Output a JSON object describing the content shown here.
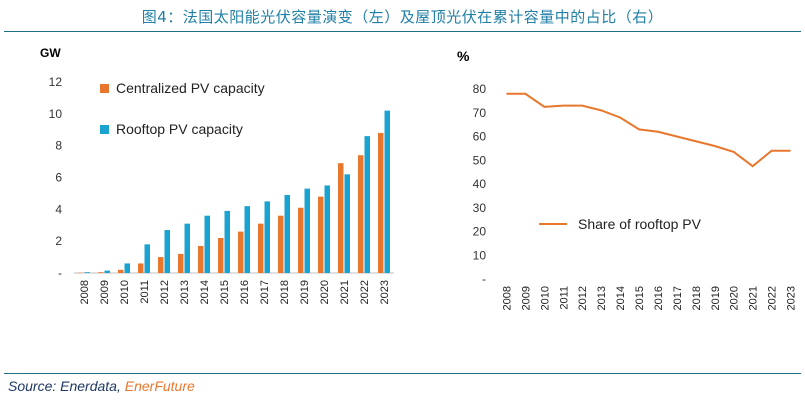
{
  "title": "图4：法国太阳能光伏容量演变（左）及屋顶光伏在累计容量中的占比（右）",
  "source": {
    "prefix": "Source: Enerdata, ",
    "brand": "EnerFuture"
  },
  "colors": {
    "centralized": "#e8772e",
    "rooftop": "#1aa3d0",
    "share": "#e8772e",
    "title": "#1f7fa6"
  },
  "chart_data": [
    {
      "type": "bar",
      "ylabel": "GW",
      "ylim": [
        0,
        12
      ],
      "yticks": [
        "-",
        "2",
        "4",
        "6",
        "8",
        "10",
        "12"
      ],
      "categories": [
        "2008",
        "2009",
        "2010",
        "2011",
        "2012",
        "2013",
        "2014",
        "2015",
        "2016",
        "2017",
        "2018",
        "2019",
        "2020",
        "2021",
        "2022",
        "2023"
      ],
      "series": [
        {
          "name": "Centralized PV capacity",
          "color": "#e8772e",
          "values": [
            0.02,
            0.05,
            0.2,
            0.6,
            1.0,
            1.2,
            1.7,
            2.2,
            2.6,
            3.1,
            3.6,
            4.1,
            4.8,
            6.9,
            7.4,
            8.8
          ]
        },
        {
          "name": "Rooftop PV capacity",
          "color": "#1aa3d0",
          "values": [
            0.05,
            0.15,
            0.6,
            1.8,
            2.7,
            3.1,
            3.6,
            3.9,
            4.2,
            4.5,
            4.9,
            5.3,
            5.5,
            6.2,
            8.6,
            10.2
          ]
        }
      ],
      "legend_position": "top-left"
    },
    {
      "type": "line",
      "ylabel": "%",
      "ylim": [
        0,
        80
      ],
      "yticks": [
        "-",
        "10",
        "20",
        "30",
        "40",
        "50",
        "60",
        "70",
        "80"
      ],
      "categories": [
        "2008",
        "2009",
        "2010",
        "2011",
        "2012",
        "2013",
        "2014",
        "2015",
        "2016",
        "2017",
        "2018",
        "2019",
        "2020",
        "2021",
        "2022",
        "2023"
      ],
      "series": [
        {
          "name": "Share of rooftop PV",
          "color": "#e8772e",
          "values": [
            78,
            78,
            72.5,
            73,
            73,
            71,
            68,
            63,
            62,
            60,
            58,
            56,
            53.5,
            47.5,
            54,
            54
          ]
        }
      ],
      "legend_position": "center"
    }
  ]
}
